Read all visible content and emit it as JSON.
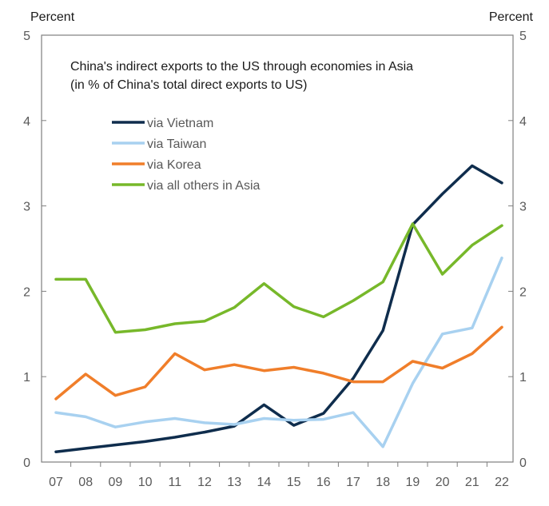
{
  "left_unit": "Percent",
  "right_unit": "Percent",
  "title_lines": [
    "China's indirect exports to the US through economies in Asia",
    "(in % of China's total direct exports to US)"
  ],
  "chart_data": {
    "type": "line",
    "title": "China's indirect exports to the US through economies in Asia (in % of China's total direct exports to US)",
    "ylabel": "Percent",
    "ylabel_right": "Percent",
    "ylim": [
      0,
      5
    ],
    "yticks": [
      "0",
      "1",
      "2",
      "3",
      "4",
      "5"
    ],
    "yticks_right": [
      "0",
      "1",
      "2",
      "3",
      "4",
      "5"
    ],
    "x": [
      "07",
      "08",
      "09",
      "10",
      "11",
      "12",
      "13",
      "14",
      "15",
      "16",
      "17",
      "18",
      "19",
      "20",
      "21",
      "22"
    ],
    "grid": false,
    "legend_position": "upper-left inside plot",
    "series": [
      {
        "name": "via Vietnam",
        "color": "#0f2d4d",
        "values": [
          0.12,
          0.16,
          0.2,
          0.24,
          0.29,
          0.35,
          0.42,
          0.67,
          0.43,
          0.57,
          0.98,
          1.54,
          2.78,
          3.14,
          3.47,
          3.27
        ]
      },
      {
        "name": "via Taiwan",
        "color": "#a8d1f0",
        "values": [
          0.58,
          0.53,
          0.41,
          0.47,
          0.51,
          0.46,
          0.44,
          0.51,
          0.49,
          0.5,
          0.58,
          0.18,
          0.92,
          1.5,
          1.57,
          2.39
        ]
      },
      {
        "name": "via Korea",
        "color": "#f07e2a",
        "values": [
          0.74,
          1.03,
          0.78,
          0.88,
          1.27,
          1.08,
          1.14,
          1.07,
          1.11,
          1.04,
          0.94,
          0.94,
          1.18,
          1.1,
          1.27,
          1.58
        ]
      },
      {
        "name": "via all others in Asia",
        "color": "#77b82a",
        "values": [
          2.14,
          2.14,
          1.52,
          1.55,
          1.62,
          1.65,
          1.81,
          2.09,
          1.82,
          1.7,
          1.89,
          2.11,
          2.79,
          2.2,
          2.54,
          2.77
        ]
      }
    ]
  }
}
